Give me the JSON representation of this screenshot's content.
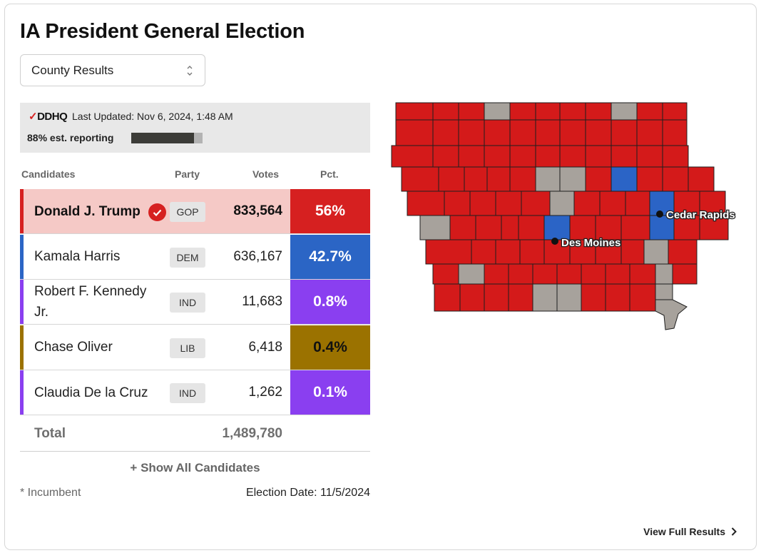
{
  "title": "IA President General Election",
  "view_select": {
    "value": "County Results"
  },
  "status": {
    "logo": "DDHQ",
    "last_updated": "Last Updated: Nov 6, 2024, 1:48 AM",
    "reporting_label": "88% est. reporting",
    "reporting_pct": 88
  },
  "table": {
    "headers": {
      "candidates": "Candidates",
      "party": "Party",
      "votes": "Votes",
      "pct": "Pct."
    },
    "rows": [
      {
        "name": "Donald J. Trump",
        "party": "GOP",
        "votes": "833,564",
        "pct": "56%",
        "color": "#d62020",
        "winner": true
      },
      {
        "name": "Kamala Harris",
        "party": "DEM",
        "votes": "636,167",
        "pct": "42.7%",
        "color": "#2b65c5",
        "winner": false
      },
      {
        "name": "Robert F. Kennedy Jr.",
        "party": "IND",
        "votes": "11,683",
        "pct": "0.8%",
        "color": "#8a3ff0",
        "winner": false
      },
      {
        "name": "Chase Oliver",
        "party": "LIB",
        "votes": "6,418",
        "pct": "0.4%",
        "color": "#9b7200",
        "winner": false
      },
      {
        "name": "Claudia De la Cruz",
        "party": "IND",
        "votes": "1,262",
        "pct": "0.1%",
        "color": "#8a3ff0",
        "winner": false
      }
    ],
    "total_label": "Total",
    "total_votes": "1,489,780",
    "show_all": "+ Show All Candidates",
    "incumbent_note": "* Incumbent",
    "election_date": "Election Date: 11/5/2024"
  },
  "map": {
    "cities": [
      {
        "name": "Cedar Rapids"
      },
      {
        "name": "Des Moines"
      }
    ],
    "colors": {
      "gop": "#d41a1a",
      "dem": "#2b64c6",
      "none": "#a7a29c",
      "border": "#1e1e1e"
    }
  },
  "footer": {
    "view_full_results": "View Full Results"
  }
}
